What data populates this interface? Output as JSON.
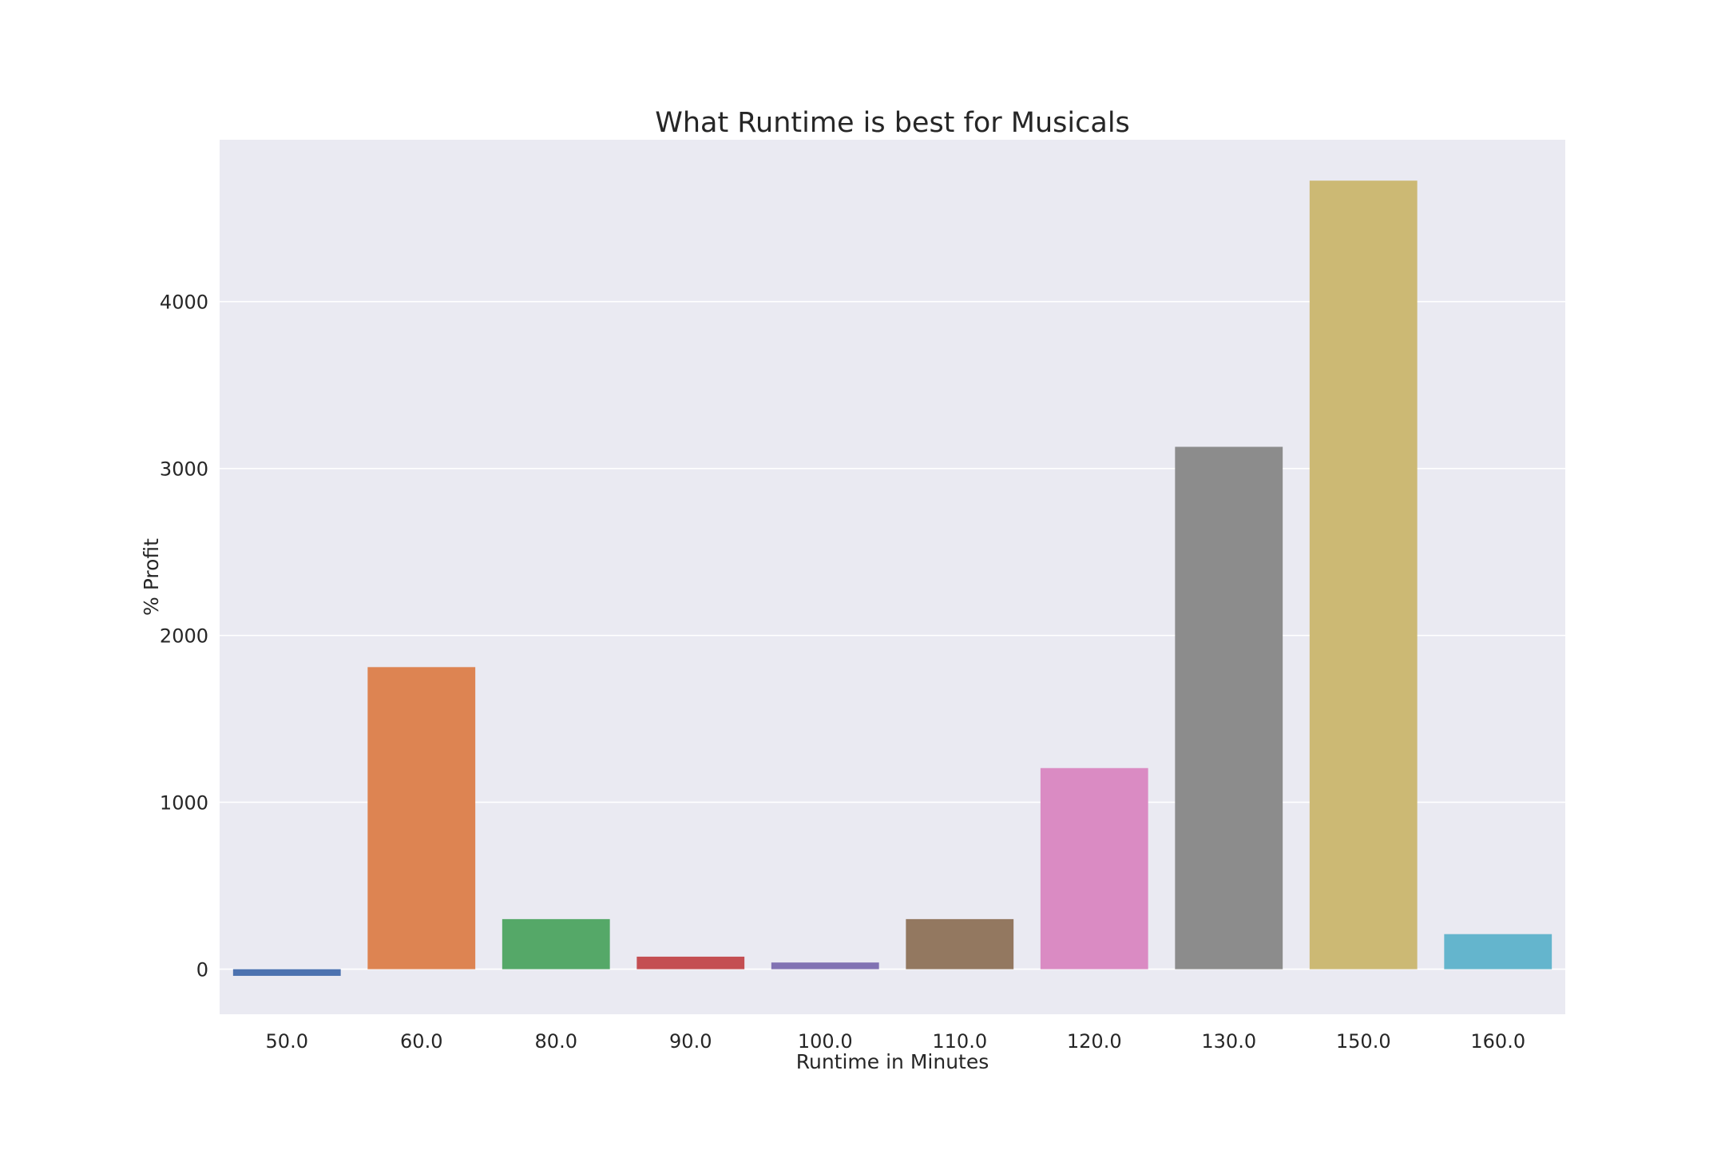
{
  "chart_data": {
    "type": "bar",
    "title": "What Runtime is best for Musicals",
    "xlabel": "Runtime in Minutes",
    "ylabel": "% Profit",
    "categories": [
      "50.0",
      "60.0",
      "80.0",
      "90.0",
      "100.0",
      "110.0",
      "120.0",
      "130.0",
      "150.0",
      "160.0"
    ],
    "values": [
      -40,
      1810,
      300,
      75,
      40,
      300,
      1205,
      3130,
      4725,
      210
    ],
    "colors": [
      "#4c72b0",
      "#dd8452",
      "#55a868",
      "#c44e52",
      "#8172b3",
      "#937860",
      "#da8bc3",
      "#8c8c8c",
      "#ccb974",
      "#64b5cd"
    ],
    "ylim": [
      -270,
      4970
    ],
    "yticks": [
      "0",
      "1000",
      "2000",
      "3000",
      "4000"
    ],
    "grid": true,
    "legend": "none"
  }
}
